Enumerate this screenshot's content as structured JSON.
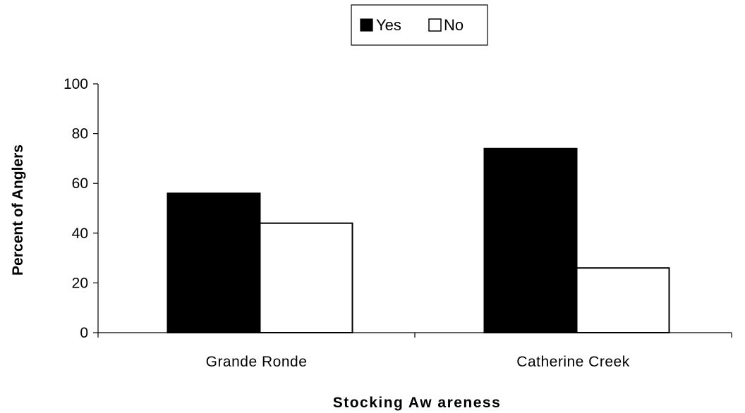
{
  "chart_data": {
    "type": "bar",
    "categories": [
      "Grande Ronde",
      "Catherine Creek"
    ],
    "series": [
      {
        "name": "Yes",
        "values": [
          56,
          74
        ],
        "color": "#000000"
      },
      {
        "name": "No",
        "values": [
          44,
          26
        ],
        "color": "#ffffff"
      }
    ],
    "xlabel": "Stocking Aw areness",
    "ylabel": "Percent of Anglers",
    "ylim": [
      0,
      100
    ],
    "yticks": [
      0,
      20,
      40,
      60,
      80,
      100
    ],
    "grid": false,
    "legend_position": "top-center"
  }
}
